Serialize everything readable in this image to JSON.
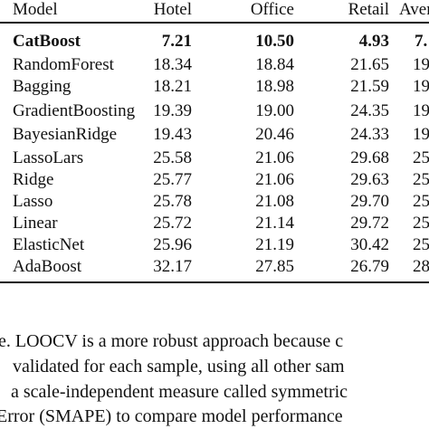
{
  "table": {
    "header": [
      "Model",
      "Hotel",
      "Office",
      "Retail",
      "Avera"
    ],
    "rows": [
      [
        "CatBoost",
        "7.21",
        "10.50",
        "4.93",
        "7."
      ],
      [
        "RandomForest",
        "18.34",
        "18.84",
        "21.65",
        "19"
      ],
      [
        "Bagging",
        "18.21",
        "18.98",
        "21.59",
        "19"
      ],
      [
        "GradientBoosting",
        "19.39",
        "19.00",
        "24.35",
        "19"
      ],
      [
        "BayesianRidge",
        "19.43",
        "20.46",
        "24.33",
        "19"
      ],
      [
        "LassoLars",
        "25.58",
        "21.06",
        "29.68",
        "25"
      ],
      [
        "Ridge",
        "25.77",
        "21.06",
        "29.63",
        "25"
      ],
      [
        "Lasso",
        "25.78",
        "21.08",
        "29.70",
        "25"
      ],
      [
        "Linear",
        "25.72",
        "21.14",
        "29.72",
        "25"
      ],
      [
        "ElasticNet",
        "25.96",
        "21.19",
        "30.42",
        "25"
      ],
      [
        "AdaBoost",
        "32.17",
        "27.85",
        "26.79",
        "28"
      ]
    ]
  },
  "paragraph": {
    "lines": [
      "e. LOOCV is a more robust approach because c",
      "validated for each sample, using all other sam",
      "a scale-independent measure called symmetric",
      "Error (SMAPE) to compare model performance"
    ]
  }
}
